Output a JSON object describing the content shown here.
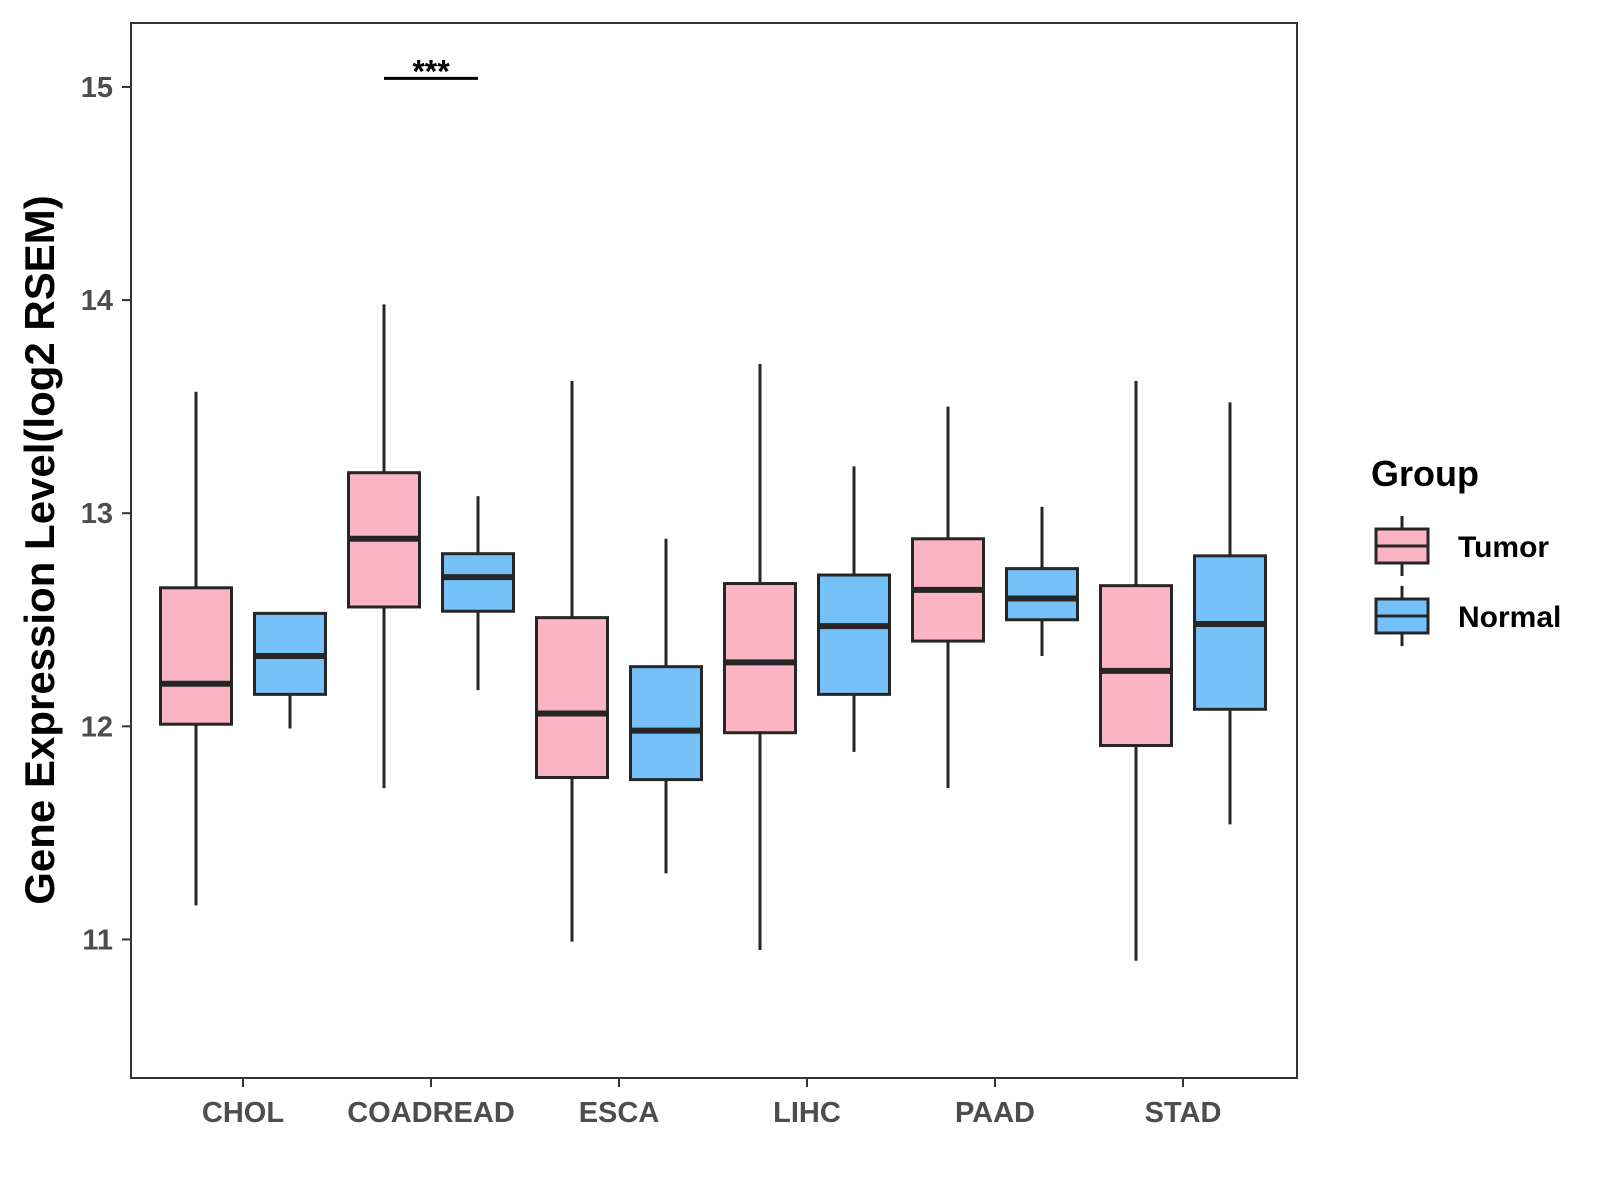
{
  "chart_data": {
    "type": "boxplot",
    "title": "",
    "xlabel": "",
    "ylabel": "Gene Expression Level(log2 RSEM)",
    "ylim": [
      10.35,
      15.3
    ],
    "yticks": [
      11,
      12,
      13,
      14,
      15
    ],
    "grid": false,
    "categories": [
      "CHOL",
      "COADREAD",
      "ESCA",
      "LIHC",
      "PAAD",
      "STAD"
    ],
    "legend": {
      "title": "Group",
      "position": "right",
      "entries": [
        {
          "name": "Tumor",
          "color": "#FBB4C4"
        },
        {
          "name": "Normal",
          "color": "#74C1F9"
        }
      ]
    },
    "series": [
      {
        "name": "Tumor",
        "color": "#FBB4C4",
        "boxes": [
          {
            "whisker_low": 11.16,
            "q1": 12.01,
            "median": 12.2,
            "q3": 12.65,
            "whisker_high": 13.57
          },
          {
            "whisker_low": 11.71,
            "q1": 12.56,
            "median": 12.88,
            "q3": 13.19,
            "whisker_high": 13.98
          },
          {
            "whisker_low": 10.99,
            "q1": 11.76,
            "median": 12.06,
            "q3": 12.51,
            "whisker_high": 13.62
          },
          {
            "whisker_low": 10.95,
            "q1": 11.97,
            "median": 12.3,
            "q3": 12.67,
            "whisker_high": 13.7
          },
          {
            "whisker_low": 11.71,
            "q1": 12.4,
            "median": 12.64,
            "q3": 12.88,
            "whisker_high": 13.5
          },
          {
            "whisker_low": 10.9,
            "q1": 11.91,
            "median": 12.26,
            "q3": 12.66,
            "whisker_high": 13.62
          }
        ]
      },
      {
        "name": "Normal",
        "color": "#74C1F9",
        "boxes": [
          {
            "whisker_low": 11.99,
            "q1": 12.15,
            "median": 12.33,
            "q3": 12.53,
            "whisker_high": 12.53
          },
          {
            "whisker_low": 12.17,
            "q1": 12.54,
            "median": 12.7,
            "q3": 12.81,
            "whisker_high": 13.08
          },
          {
            "whisker_low": 11.31,
            "q1": 11.75,
            "median": 11.98,
            "q3": 12.28,
            "whisker_high": 12.88
          },
          {
            "whisker_low": 11.88,
            "q1": 12.15,
            "median": 12.47,
            "q3": 12.71,
            "whisker_high": 13.22
          },
          {
            "whisker_low": 12.33,
            "q1": 12.5,
            "median": 12.6,
            "q3": 12.74,
            "whisker_high": 13.03
          },
          {
            "whisker_low": 11.54,
            "q1": 12.08,
            "median": 12.48,
            "q3": 12.8,
            "whisker_high": 13.52
          }
        ]
      }
    ],
    "annotations": [
      {
        "category": "COADREAD",
        "label": "***",
        "y": 15.04
      }
    ]
  }
}
